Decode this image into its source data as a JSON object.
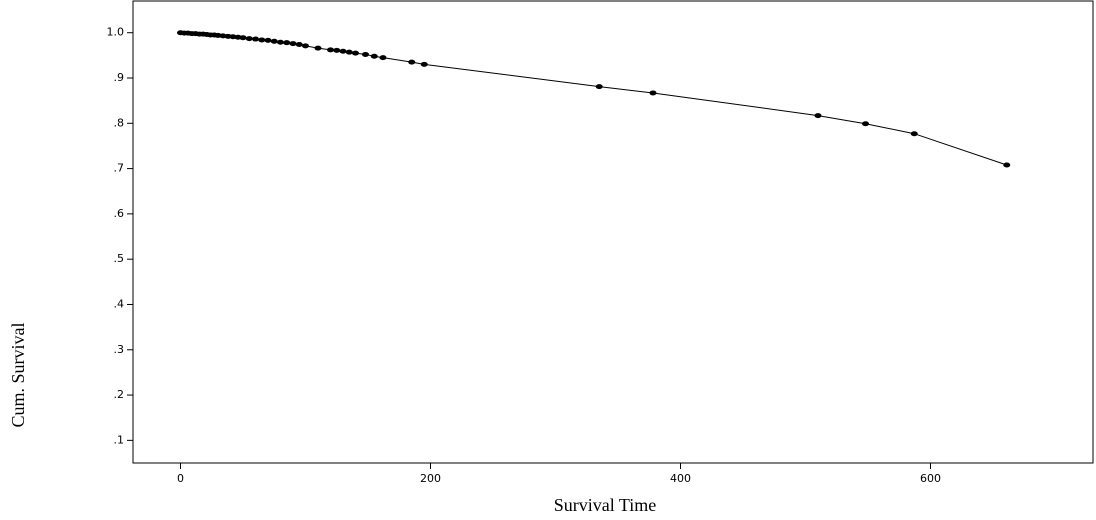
{
  "chart_data": {
    "type": "line",
    "xlabel": "Survival Time",
    "ylabel": "Cum. Survival",
    "x": [
      0,
      3,
      6,
      9,
      12,
      15,
      18,
      21,
      24,
      27,
      30,
      34,
      38,
      42,
      46,
      50,
      55,
      60,
      65,
      70,
      75,
      80,
      85,
      90,
      95,
      100,
      110,
      120,
      125,
      130,
      135,
      140,
      148,
      155,
      162,
      185,
      195,
      335,
      378,
      510,
      548,
      587,
      661
    ],
    "values": [
      1.0,
      0.999,
      0.999,
      0.998,
      0.998,
      0.997,
      0.997,
      0.996,
      0.995,
      0.995,
      0.994,
      0.993,
      0.992,
      0.991,
      0.99,
      0.989,
      0.987,
      0.986,
      0.984,
      0.983,
      0.981,
      0.979,
      0.978,
      0.976,
      0.974,
      0.971,
      0.966,
      0.962,
      0.961,
      0.959,
      0.957,
      0.955,
      0.952,
      0.948,
      0.945,
      0.935,
      0.93,
      0.881,
      0.867,
      0.817,
      0.799,
      0.777,
      0.708
    ],
    "color": "#000000",
    "xlim": [
      -38,
      730
    ],
    "ylim": [
      0.05,
      1.07
    ],
    "xticks": [
      0,
      200,
      400,
      600
    ],
    "yticks": [
      {
        "value": 0.1,
        "label": ".1"
      },
      {
        "value": 0.2,
        "label": ".2"
      },
      {
        "value": 0.3,
        "label": ".3"
      },
      {
        "value": 0.4,
        "label": ".4"
      },
      {
        "value": 0.5,
        "label": ".5"
      },
      {
        "value": 0.6,
        "label": ".6"
      },
      {
        "value": 0.7,
        "label": ".7"
      },
      {
        "value": 0.8,
        "label": ".8"
      },
      {
        "value": 0.9,
        "label": ".9"
      },
      {
        "value": 1.0,
        "label": "1.0"
      }
    ],
    "grid": false
  }
}
